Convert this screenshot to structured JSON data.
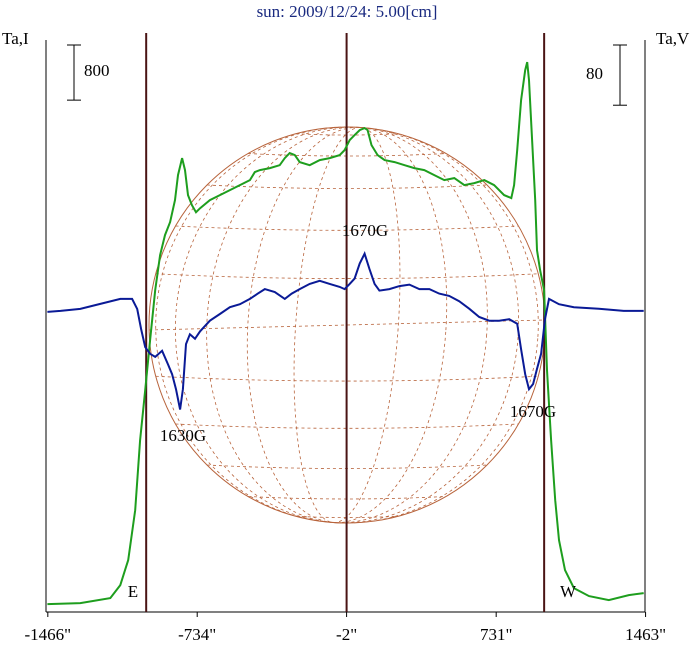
{
  "chart_data": {
    "type": "line",
    "title": "sun: 2009/12/24: 5.00[cm]",
    "ylabel": "Ta,I",
    "y2label": "Ta,V",
    "xlim": [
      -1470,
      1470
    ],
    "ylim": [
      -100,
      8200
    ],
    "y2lim": [
      -400,
      360
    ],
    "xticks": [
      {
        "value": -1466,
        "label": "-1466\""
      },
      {
        "value": -734,
        "label": "-734\""
      },
      {
        "value": -2,
        "label": "-2\""
      },
      {
        "value": 731,
        "label": "731\""
      },
      {
        "value": 1463,
        "label": "1463\""
      }
    ],
    "scale_bar": 800,
    "scale_bar_y2": 80,
    "vertical_lines": [
      -984,
      -2,
      966
    ],
    "annotations": [
      "1670G",
      "1630G",
      "1670G",
      "E",
      "W"
    ],
    "series": [
      {
        "color": "#1e9e1e",
        "x": [
          -1468,
          -1307,
          -1160,
          -1111,
          -1072,
          -1038,
          -1014,
          -989,
          -965,
          -940,
          -916,
          -892,
          -867,
          -843,
          -828,
          -808,
          -794,
          -779,
          -760,
          -740,
          -720,
          -672,
          -623,
          -574,
          -525,
          -476,
          -452,
          -427,
          -378,
          -330,
          -305,
          -281,
          -256,
          -232,
          -183,
          -134,
          -85,
          -36,
          -12,
          13,
          37,
          62,
          86,
          101,
          120,
          150,
          184,
          233,
          282,
          330,
          379,
          428,
          477,
          526,
          575,
          624,
          673,
          721,
          770,
          805,
          819,
          834,
          853,
          873,
          883,
          892,
          907,
          922,
          931,
          946,
          966,
          980,
          1000,
          1020,
          1039,
          1068,
          1112,
          1186,
          1283,
          1381,
          1454
        ],
        "values": [
          15,
          29,
          102,
          290,
          653,
          1378,
          2394,
          3120,
          3845,
          4571,
          5079,
          5369,
          5557,
          5877,
          6239,
          6486,
          6312,
          5949,
          5804,
          5702,
          5760,
          5877,
          5949,
          6022,
          6094,
          6167,
          6283,
          6312,
          6341,
          6384,
          6486,
          6559,
          6530,
          6428,
          6384,
          6457,
          6486,
          6530,
          6602,
          6747,
          6820,
          6892,
          6921,
          6892,
          6675,
          6530,
          6457,
          6428,
          6384,
          6341,
          6312,
          6239,
          6167,
          6196,
          6094,
          6123,
          6167,
          6094,
          5949,
          5906,
          6094,
          6602,
          7328,
          7763,
          7879,
          7618,
          6747,
          5877,
          5151,
          4861,
          4571,
          3410,
          2394,
          1524,
          943,
          508,
          247,
          131,
          73,
          145,
          174
        ]
      },
      {
        "color": "#0a1a96",
        "axis": "y2",
        "x": [
          -1468,
          -1404,
          -1307,
          -1209,
          -1111,
          -1053,
          -1028,
          -1009,
          -989,
          -965,
          -940,
          -906,
          -877,
          -857,
          -838,
          -818,
          -804,
          -789,
          -770,
          -745,
          -720,
          -672,
          -623,
          -574,
          -525,
          -476,
          -437,
          -403,
          -354,
          -305,
          -271,
          -232,
          -183,
          -134,
          -85,
          -36,
          -12,
          13,
          37,
          62,
          86,
          110,
          135,
          159,
          208,
          257,
          306,
          355,
          404,
          452,
          501,
          550,
          599,
          648,
          697,
          746,
          795,
          834,
          853,
          873,
          892,
          912,
          931,
          951,
          970,
          990,
          1039,
          1112,
          1234,
          1356,
          1454
        ],
        "values": [
          -1.3,
          0,
          2.7,
          9.3,
          16,
          16,
          2.7,
          -24,
          -48,
          -57,
          -61,
          -53,
          -71,
          -84,
          -104,
          -131,
          -104,
          -44,
          -31,
          -37,
          -27,
          -13,
          -4,
          5,
          9,
          16,
          23,
          29,
          25,
          16,
          23,
          29,
          36,
          40,
          36,
          32,
          29,
          36,
          43,
          63,
          76,
          56,
          36,
          27,
          29,
          33,
          35,
          29,
          29,
          23,
          20,
          13,
          3,
          -8,
          -13,
          -13,
          -11,
          -17,
          -51,
          -84,
          -104,
          -97,
          -77,
          -57,
          -11,
          16,
          9,
          5,
          3,
          0,
          0
        ]
      }
    ]
  }
}
